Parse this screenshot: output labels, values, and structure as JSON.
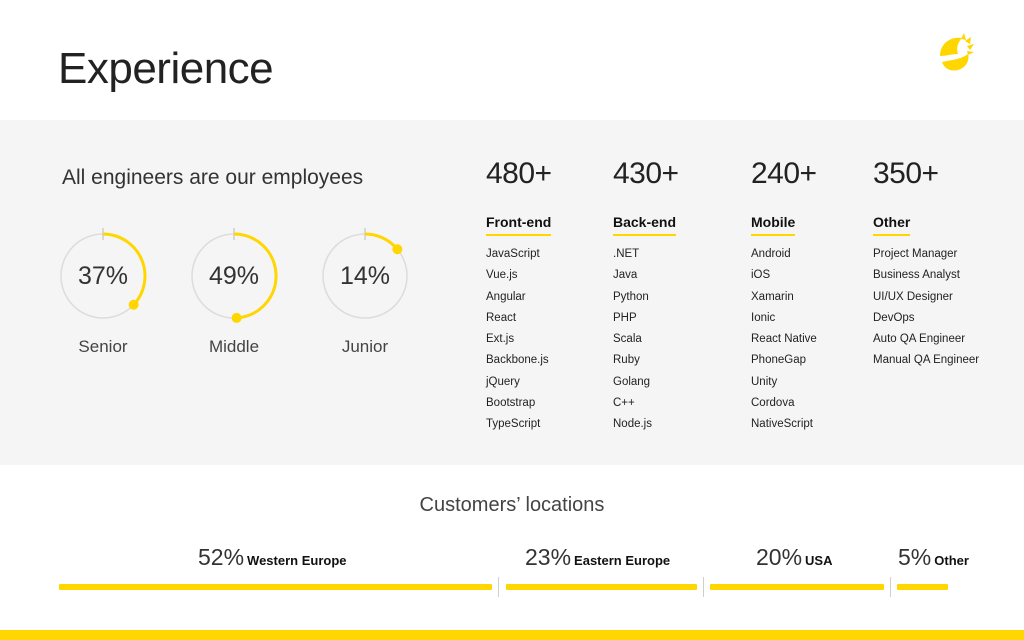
{
  "page": {
    "title": "Experience"
  },
  "logo": {
    "icon": "sun-leaf-logo-icon",
    "color": "#ffd600"
  },
  "colors": {
    "accent": "#ffd600",
    "band": "#f5f5f5",
    "ring_track": "#dcdcdc"
  },
  "employees": {
    "heading": "All engineers are our employees",
    "levels": [
      {
        "label": "Senior",
        "percent_text": "37%",
        "percent": 37
      },
      {
        "label": "Middle",
        "percent_text": "49%",
        "percent": 49
      },
      {
        "label": "Junior",
        "percent_text": "14%",
        "percent": 14
      }
    ]
  },
  "skills": [
    {
      "count": "480+",
      "heading": "Front-end",
      "items": [
        "JavaScript",
        "Vue.js",
        "Angular",
        "React",
        "Ext.js",
        "Backbone.js",
        "jQuery",
        "Bootstrap",
        "TypeScript"
      ]
    },
    {
      "count": "430+",
      "heading": "Back-end",
      "items": [
        ".NET",
        "Java",
        "Python",
        "PHP",
        "Scala",
        "Ruby",
        "Golang",
        "C++",
        "Node.js"
      ]
    },
    {
      "count": "240+",
      "heading": "Mobile",
      "items": [
        "Android",
        "iOS",
        "Xamarin",
        "Ionic",
        "React Native",
        "PhoneGap",
        "Unity",
        "Cordova",
        "NativeScript"
      ]
    },
    {
      "count": "350+",
      "heading": "Other",
      "items": [
        "Project Manager",
        "Business Analyst",
        "UI/UX Designer",
        "DevOps",
        "Auto QA Engineer",
        "Manual QA Engineer"
      ]
    }
  ],
  "customers": {
    "title": "Customers’ locations",
    "locations": [
      {
        "percent_text": "52%",
        "name": "Western Europe",
        "share": 52
      },
      {
        "percent_text": "23%",
        "name": "Eastern Europe",
        "share": 23
      },
      {
        "percent_text": "20%",
        "name": "USA",
        "share": 20
      },
      {
        "percent_text": "5%",
        "name": "Other",
        "share": 5
      }
    ]
  }
}
